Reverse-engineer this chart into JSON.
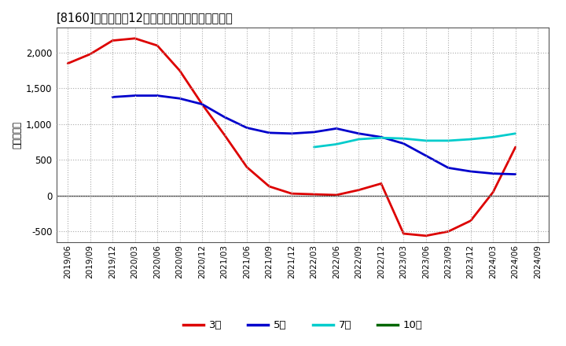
{
  "title": "[8160]　経常利益12か月移動合計の平均値の推移",
  "ylabel": "（百万円）",
  "background_color": "#ffffff",
  "plot_bg_color": "#ffffff",
  "grid_color": "#aaaaaa",
  "ylim": [
    -650,
    2350
  ],
  "yticks": [
    -500,
    0,
    500,
    1000,
    1500,
    2000
  ],
  "series": {
    "3年": {
      "color": "#dd0000",
      "data": [
        [
          "2019/06",
          1850
        ],
        [
          "2019/09",
          1980
        ],
        [
          "2019/12",
          2170
        ],
        [
          "2020/03",
          2200
        ],
        [
          "2020/06",
          2100
        ],
        [
          "2020/09",
          1750
        ],
        [
          "2020/12",
          1280
        ],
        [
          "2021/03",
          850
        ],
        [
          "2021/06",
          400
        ],
        [
          "2021/09",
          130
        ],
        [
          "2021/12",
          30
        ],
        [
          "2022/03",
          20
        ],
        [
          "2022/06",
          10
        ],
        [
          "2022/09",
          80
        ],
        [
          "2022/12",
          170
        ],
        [
          "2023/03",
          -530
        ],
        [
          "2023/06",
          -560
        ],
        [
          "2023/09",
          -500
        ],
        [
          "2023/12",
          -350
        ],
        [
          "2024/03",
          50
        ],
        [
          "2024/06",
          680
        ]
      ]
    },
    "5年": {
      "color": "#0000cc",
      "data": [
        [
          "2019/12",
          1380
        ],
        [
          "2020/03",
          1400
        ],
        [
          "2020/06",
          1400
        ],
        [
          "2020/09",
          1360
        ],
        [
          "2020/12",
          1280
        ],
        [
          "2021/03",
          1100
        ],
        [
          "2021/06",
          950
        ],
        [
          "2021/09",
          880
        ],
        [
          "2021/12",
          870
        ],
        [
          "2022/03",
          890
        ],
        [
          "2022/06",
          940
        ],
        [
          "2022/09",
          870
        ],
        [
          "2022/12",
          820
        ],
        [
          "2023/03",
          730
        ],
        [
          "2023/06",
          560
        ],
        [
          "2023/09",
          390
        ],
        [
          "2023/12",
          340
        ],
        [
          "2024/03",
          310
        ],
        [
          "2024/06",
          300
        ]
      ]
    },
    "7年": {
      "color": "#00cccc",
      "data": [
        [
          "2022/03",
          680
        ],
        [
          "2022/06",
          720
        ],
        [
          "2022/09",
          790
        ],
        [
          "2022/12",
          810
        ],
        [
          "2023/03",
          800
        ],
        [
          "2023/06",
          770
        ],
        [
          "2023/09",
          770
        ],
        [
          "2023/12",
          790
        ],
        [
          "2024/03",
          820
        ],
        [
          "2024/06",
          870
        ]
      ]
    },
    "10年": {
      "color": "#006600",
      "data": []
    }
  },
  "x_labels": [
    "2019/06",
    "2019/09",
    "2019/12",
    "2020/03",
    "2020/06",
    "2020/09",
    "2020/12",
    "2021/03",
    "2021/06",
    "2021/09",
    "2021/12",
    "2022/03",
    "2022/06",
    "2022/09",
    "2022/12",
    "2023/03",
    "2023/06",
    "2023/09",
    "2023/12",
    "2024/03",
    "2024/06",
    "2024/09"
  ],
  "legend": [
    {
      "label": "3年",
      "color": "#dd0000"
    },
    {
      "label": "5年",
      "color": "#0000cc"
    },
    {
      "label": "7年",
      "color": "#00cccc"
    },
    {
      "label": "10年",
      "color": "#006600"
    }
  ]
}
